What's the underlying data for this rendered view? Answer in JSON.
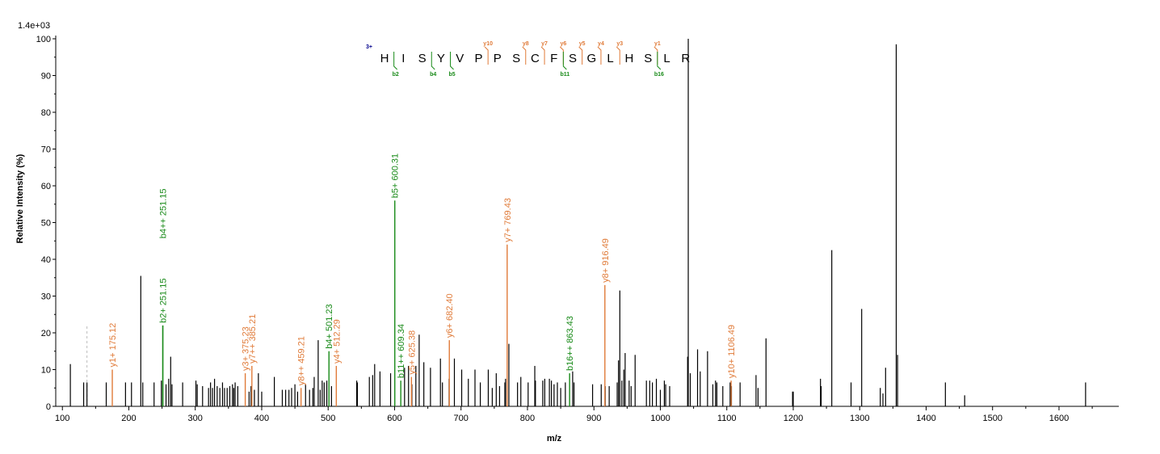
{
  "chart_data": {
    "type": "bar",
    "title": "",
    "xlabel": "m/z",
    "ylabel": "Relative   Intensity (%)",
    "scale_label": "1.4e+03",
    "xlim": [
      90,
      1690
    ],
    "ylim": [
      0,
      100
    ],
    "x_ticks": [
      100,
      200,
      300,
      400,
      500,
      600,
      700,
      800,
      900,
      1000,
      1100,
      1200,
      1300,
      1400,
      1500,
      1600
    ],
    "y_ticks": [
      0,
      10,
      20,
      30,
      40,
      50,
      60,
      70,
      80,
      90,
      100
    ],
    "colors": {
      "unannotated": "#000000",
      "y_ion": "#e07b39",
      "b_ion": "#188a18",
      "precursor": "#bbbbbb",
      "charge": "#00008b"
    },
    "peptide": {
      "charge": "3+",
      "residues": [
        "H",
        "I",
        "S",
        "Y",
        "V",
        "P",
        "P",
        "S",
        "C",
        "F",
        "S",
        "G",
        "L",
        "H",
        "S",
        "L",
        "R"
      ],
      "y_marks": [
        {
          "after": 6,
          "label": "y10"
        },
        {
          "after": 8,
          "label": "y8"
        },
        {
          "after": 9,
          "label": "y7"
        },
        {
          "after": 10,
          "label": "y6"
        },
        {
          "after": 11,
          "label": "y5"
        },
        {
          "after": 12,
          "label": "y4"
        },
        {
          "after": 13,
          "label": "y3"
        },
        {
          "after": 15,
          "label": "y1"
        }
      ],
      "b_marks": [
        {
          "after": 1,
          "label": "b2"
        },
        {
          "after": 3,
          "label": "b4"
        },
        {
          "after": 4,
          "label": "b5"
        },
        {
          "after": 10,
          "label": "b11"
        },
        {
          "after": 15,
          "label": "b16"
        }
      ]
    },
    "annotated_peaks": [
      {
        "mz": 175.12,
        "intensity": 10,
        "ion": "y",
        "label": "y1+ 175.12"
      },
      {
        "mz": 251.15,
        "intensity": 22,
        "ion": "b",
        "label": "b2+ 251.15"
      },
      {
        "mz": 251.15,
        "intensity": 22,
        "ion": "b",
        "label": "b4++ 251.15",
        "label_intensity": 45
      },
      {
        "mz": 375.23,
        "intensity": 9,
        "ion": "y",
        "label": "y3+ 375.23"
      },
      {
        "mz": 385.21,
        "intensity": 11,
        "ion": "y",
        "label": "y7++ 385.21"
      },
      {
        "mz": 459.21,
        "intensity": 5,
        "ion": "y",
        "label": "y8++ 459.21"
      },
      {
        "mz": 501.23,
        "intensity": 15,
        "ion": "b",
        "label": "b4+ 501.23"
      },
      {
        "mz": 512.29,
        "intensity": 11,
        "ion": "y",
        "label": "y4+ 512.29"
      },
      {
        "mz": 600.31,
        "intensity": 56,
        "ion": "b",
        "label": "b5+ 600.31"
      },
      {
        "mz": 609.34,
        "intensity": 7,
        "ion": "b",
        "label": "b11++ 609.34"
      },
      {
        "mz": 625.38,
        "intensity": 8,
        "ion": "y",
        "label": "y5+ 625.38"
      },
      {
        "mz": 682.4,
        "intensity": 18,
        "ion": "y",
        "label": "y6+ 682.40"
      },
      {
        "mz": 769.43,
        "intensity": 44,
        "ion": "y",
        "label": "y7+ 769.43"
      },
      {
        "mz": 863.43,
        "intensity": 9,
        "ion": "b",
        "label": "b16++ 863.43"
      },
      {
        "mz": 916.49,
        "intensity": 33,
        "ion": "y",
        "label": "y8+ 916.49"
      },
      {
        "mz": 1106.49,
        "intensity": 7,
        "ion": "y",
        "label": "y10+ 1106.49"
      }
    ],
    "precursor_marker": {
      "mz": 137,
      "intensity": 22
    },
    "peaks": [
      [
        112,
        11.5
      ],
      [
        132,
        6.5
      ],
      [
        137,
        6.5
      ],
      [
        166,
        6.5
      ],
      [
        195,
        6.5
      ],
      [
        204,
        6.5
      ],
      [
        218,
        35.5
      ],
      [
        221,
        6.5
      ],
      [
        238,
        6.5
      ],
      [
        249,
        7
      ],
      [
        256,
        6
      ],
      [
        260,
        7.5
      ],
      [
        263,
        13.5
      ],
      [
        265,
        6
      ],
      [
        281,
        6.5
      ],
      [
        301,
        7
      ],
      [
        303,
        6
      ],
      [
        311,
        5.5
      ],
      [
        320,
        5
      ],
      [
        323,
        6.5
      ],
      [
        326,
        5
      ],
      [
        329,
        7.5
      ],
      [
        333,
        5.5
      ],
      [
        337,
        5
      ],
      [
        341,
        6.5
      ],
      [
        344,
        5
      ],
      [
        348,
        5
      ],
      [
        352,
        5.5
      ],
      [
        356,
        6
      ],
      [
        358,
        5
      ],
      [
        360,
        6.5
      ],
      [
        364,
        5.5
      ],
      [
        381,
        4
      ],
      [
        384,
        5.5
      ],
      [
        389,
        4.5
      ],
      [
        395,
        9
      ],
      [
        400,
        4
      ],
      [
        419,
        8
      ],
      [
        431,
        4.5
      ],
      [
        436,
        4.5
      ],
      [
        441,
        4.5
      ],
      [
        445,
        5
      ],
      [
        450,
        6
      ],
      [
        454,
        4
      ],
      [
        466,
        6
      ],
      [
        472,
        4.5
      ],
      [
        477,
        5
      ],
      [
        479,
        8
      ],
      [
        485,
        18
      ],
      [
        488,
        4.5
      ],
      [
        491,
        7
      ],
      [
        494,
        6.5
      ],
      [
        498,
        7
      ],
      [
        505,
        5.5
      ],
      [
        543,
        7
      ],
      [
        544,
        6.5
      ],
      [
        562,
        8
      ],
      [
        567,
        8.5
      ],
      [
        570,
        11.5
      ],
      [
        578,
        9.5
      ],
      [
        594,
        9
      ],
      [
        615,
        10.5
      ],
      [
        621,
        11
      ],
      [
        626,
        6
      ],
      [
        632,
        11
      ],
      [
        637,
        19.5
      ],
      [
        644,
        12
      ],
      [
        654,
        10.5
      ],
      [
        669,
        13
      ],
      [
        672,
        6.5
      ],
      [
        682,
        7.5
      ],
      [
        690,
        13
      ],
      [
        701,
        10
      ],
      [
        711,
        7.5
      ],
      [
        721,
        10
      ],
      [
        729,
        6.5
      ],
      [
        741,
        10
      ],
      [
        747,
        5
      ],
      [
        753,
        9
      ],
      [
        758,
        5.5
      ],
      [
        766,
        6.5
      ],
      [
        767,
        7.5
      ],
      [
        772,
        17
      ],
      [
        785,
        6.5
      ],
      [
        790,
        8
      ],
      [
        801,
        6.5
      ],
      [
        811,
        11
      ],
      [
        812,
        7
      ],
      [
        823,
        7
      ],
      [
        826,
        7.5
      ],
      [
        833,
        7.5
      ],
      [
        836,
        7
      ],
      [
        840,
        6
      ],
      [
        845,
        6.5
      ],
      [
        850,
        5
      ],
      [
        857,
        6.5
      ],
      [
        868,
        9.5
      ],
      [
        870,
        6.5
      ],
      [
        898,
        6
      ],
      [
        911,
        6
      ],
      [
        917,
        5.5
      ],
      [
        923,
        5.5
      ],
      [
        935,
        6.5
      ],
      [
        937,
        12.5
      ],
      [
        939,
        31.5
      ],
      [
        942,
        7
      ],
      [
        945,
        10
      ],
      [
        947,
        14.5
      ],
      [
        953,
        7
      ],
      [
        956,
        5.5
      ],
      [
        962,
        14
      ],
      [
        979,
        7
      ],
      [
        984,
        7
      ],
      [
        988,
        6.5
      ],
      [
        994,
        7.5
      ],
      [
        1000,
        4.5
      ],
      [
        1006,
        7
      ],
      [
        1008,
        6
      ],
      [
        1014,
        5.5
      ],
      [
        1041,
        13.5
      ],
      [
        1042,
        100
      ],
      [
        1045,
        9
      ],
      [
        1056,
        15.5
      ],
      [
        1060,
        9.5
      ],
      [
        1071,
        15
      ],
      [
        1079,
        6
      ],
      [
        1083,
        7
      ],
      [
        1085,
        6.5
      ],
      [
        1094,
        5.5
      ],
      [
        1105,
        6.5
      ],
      [
        1107,
        5.5
      ],
      [
        1120,
        6.5
      ],
      [
        1144,
        8.5
      ],
      [
        1147,
        5
      ],
      [
        1159,
        18.5
      ],
      [
        1199,
        4
      ],
      [
        1200,
        4
      ],
      [
        1241,
        7.5
      ],
      [
        1242,
        5.5
      ],
      [
        1258,
        42.5
      ],
      [
        1287,
        6.5
      ],
      [
        1303,
        26.5
      ],
      [
        1331,
        5
      ],
      [
        1335,
        3.5
      ],
      [
        1339,
        10.5
      ],
      [
        1355,
        98.5
      ],
      [
        1357,
        14
      ],
      [
        1429,
        6.5
      ],
      [
        1458,
        3
      ],
      [
        1640,
        6.5
      ]
    ]
  }
}
